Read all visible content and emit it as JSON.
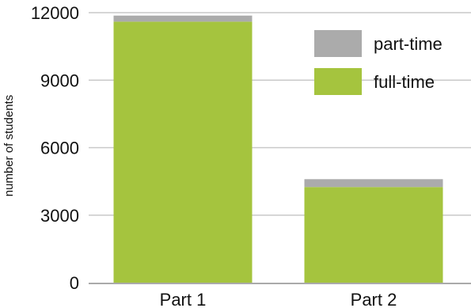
{
  "chart_data": {
    "type": "bar",
    "stacked": true,
    "title": "",
    "xlabel": "",
    "ylabel": "number of students",
    "ylim": [
      0,
      12000
    ],
    "yticks": [
      "0",
      "3000",
      "6000",
      "9000",
      "12000"
    ],
    "grid": true,
    "legend_position": "top-right",
    "categories": [
      "Part 1",
      "Part 2"
    ],
    "series": [
      {
        "name": "full-time",
        "color": "#a5c43e",
        "values": [
          11600,
          4250
        ]
      },
      {
        "name": "part-time",
        "color": "#ababab",
        "values": [
          270,
          350
        ]
      }
    ]
  }
}
